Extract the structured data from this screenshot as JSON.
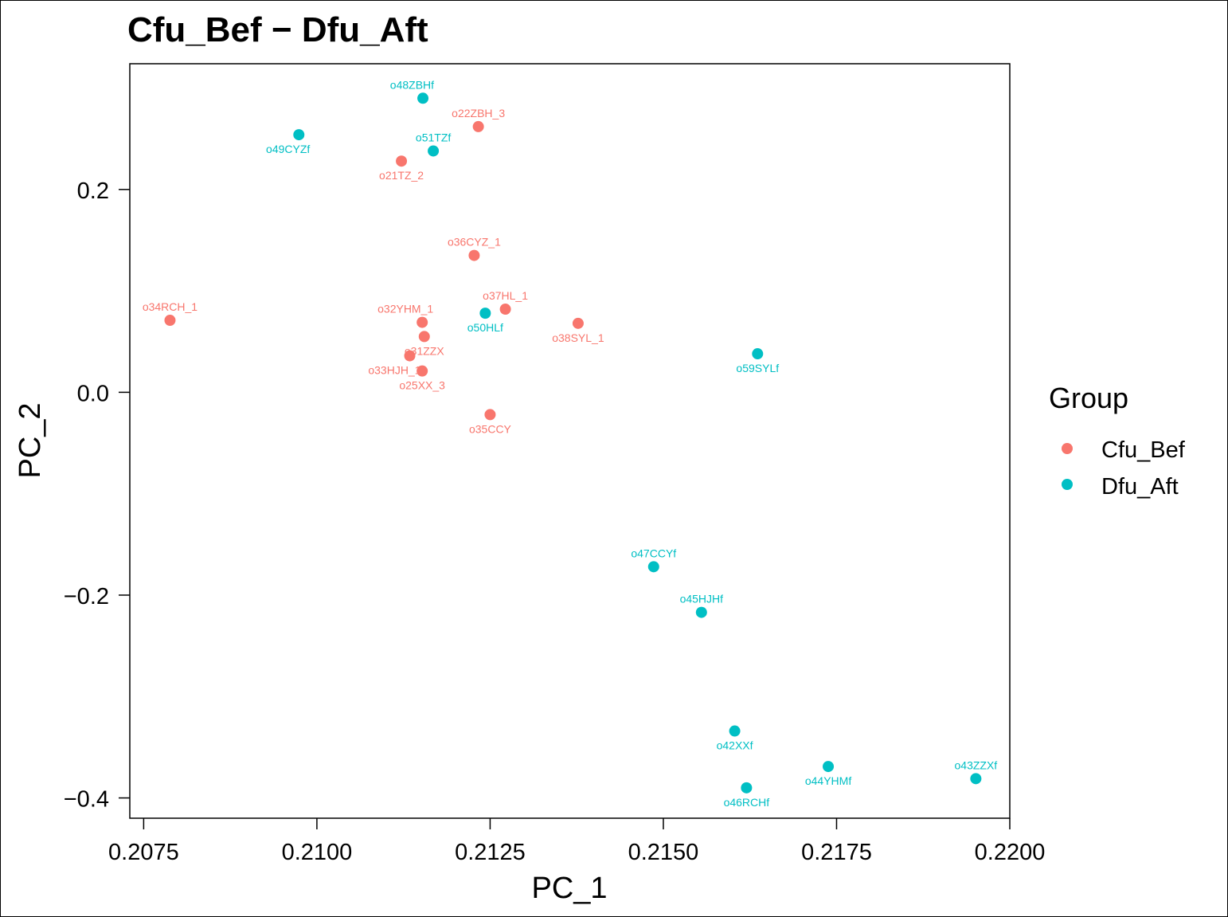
{
  "chart_data": {
    "type": "scatter",
    "title": "Cfu_Bef − Dfu_Aft",
    "xlabel": "PC_1",
    "ylabel": "PC_2",
    "xlim": [
      0.2073,
      0.22
    ],
    "ylim": [
      -0.42,
      0.324
    ],
    "xticks": [
      0.2075,
      0.21,
      0.2125,
      0.215,
      0.2175,
      0.22
    ],
    "xtick_labels": [
      "0.2075",
      "0.2100",
      "0.2125",
      "0.2150",
      "0.2175",
      "0.2200"
    ],
    "yticks": [
      -0.4,
      -0.2,
      0.0,
      0.2
    ],
    "ytick_labels": [
      "−0.4",
      "−0.2",
      "0.0",
      "0.2"
    ],
    "grid": false,
    "legend": {
      "title": "Group",
      "placement": "right",
      "entries": [
        "Cfu_Bef",
        "Dfu_Aft"
      ]
    },
    "colors": {
      "Cfu_Bef": "#F8766D",
      "Dfu_Aft": "#00BFC4"
    },
    "series": [
      {
        "name": "Cfu_Bef",
        "points": [
          {
            "x": 0.21233,
            "y": 0.262,
            "label": "o22ZBH_3",
            "pos": "above"
          },
          {
            "x": 0.21122,
            "y": 0.228,
            "label": "o21TZ_2",
            "pos": "below"
          },
          {
            "x": 0.21227,
            "y": 0.135,
            "label": "o36CYZ_1",
            "pos": "above"
          },
          {
            "x": 0.20788,
            "y": 0.071,
            "label": "o34RCH_1",
            "pos": "above"
          },
          {
            "x": 0.21272,
            "y": 0.082,
            "label": "o37HL_1",
            "pos": "above"
          },
          {
            "x": 0.21152,
            "y": 0.069,
            "label": "o32YHM_1",
            "pos": "above-left"
          },
          {
            "x": 0.21377,
            "y": 0.068,
            "label": "o38SYL_1",
            "pos": "below"
          },
          {
            "x": 0.21155,
            "y": 0.055,
            "label": "o31ZZX",
            "pos": "below"
          },
          {
            "x": 0.21134,
            "y": 0.036,
            "label": "o33HJH_1",
            "pos": "below-left"
          },
          {
            "x": 0.21152,
            "y": 0.021,
            "label": "o25XX_3",
            "pos": "below"
          },
          {
            "x": 0.2125,
            "y": -0.022,
            "label": "o35CCY",
            "pos": "below"
          }
        ]
      },
      {
        "name": "Dfu_Aft",
        "points": [
          {
            "x": 0.21153,
            "y": 0.29,
            "label": "o48ZBHf",
            "pos": "above-left"
          },
          {
            "x": 0.20974,
            "y": 0.254,
            "label": "o49CYZf",
            "pos": "below-left"
          },
          {
            "x": 0.21168,
            "y": 0.238,
            "label": "o51TZf",
            "pos": "above"
          },
          {
            "x": 0.21243,
            "y": 0.078,
            "label": "o50HLf",
            "pos": "below"
          },
          {
            "x": 0.21636,
            "y": 0.038,
            "label": "o59SYLf",
            "pos": "below"
          },
          {
            "x": 0.21486,
            "y": -0.172,
            "label": "o47CCYf",
            "pos": "above"
          },
          {
            "x": 0.21555,
            "y": -0.217,
            "label": "o45HJHf",
            "pos": "above"
          },
          {
            "x": 0.21603,
            "y": -0.334,
            "label": "o42XXf",
            "pos": "below"
          },
          {
            "x": 0.21738,
            "y": -0.369,
            "label": "o44YHMf",
            "pos": "below"
          },
          {
            "x": 0.21951,
            "y": -0.381,
            "label": "o43ZZXf",
            "pos": "above"
          },
          {
            "x": 0.2162,
            "y": -0.39,
            "label": "o46RCHf",
            "pos": "below"
          }
        ]
      }
    ]
  }
}
